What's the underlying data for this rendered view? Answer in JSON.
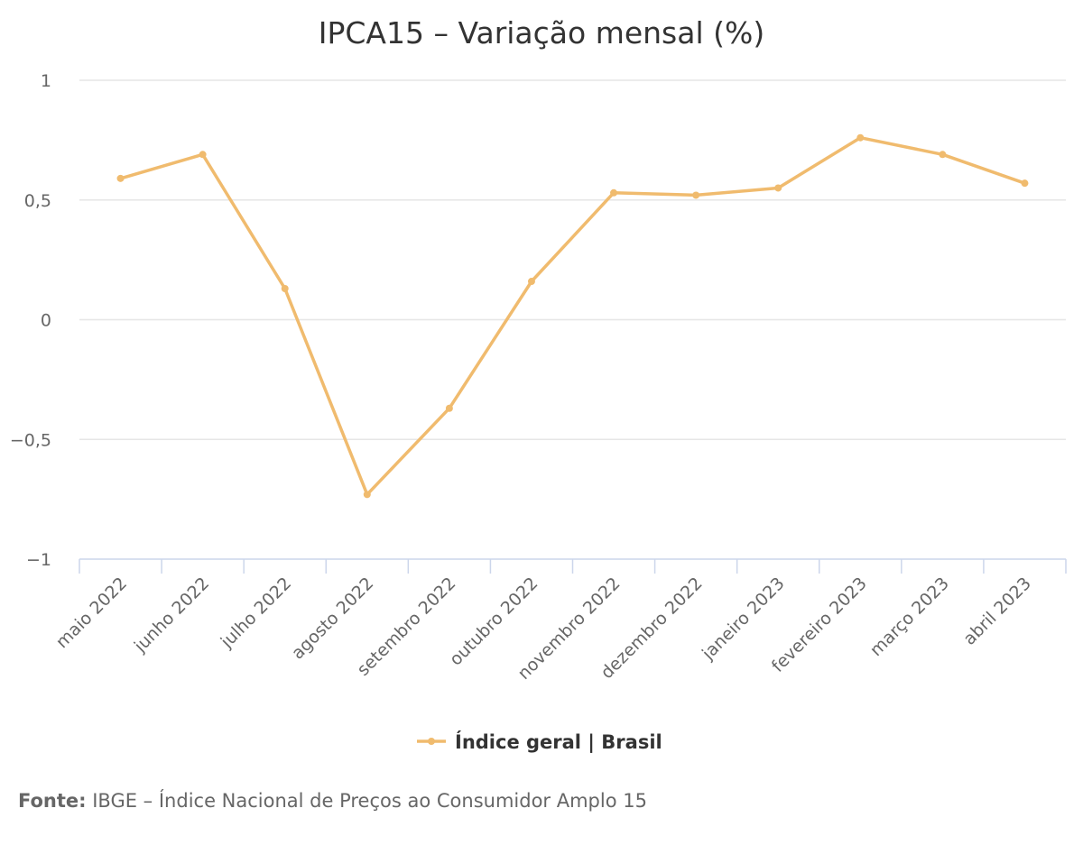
{
  "chart_data": {
    "type": "line",
    "title": "IPCA15 – Variação mensal (%)",
    "categories": [
      "maio 2022",
      "junho 2022",
      "julho 2022",
      "agosto 2022",
      "setembro 2022",
      "outubro 2022",
      "novembro 2022",
      "dezembro 2022",
      "janeiro 2023",
      "fevereiro 2023",
      "março 2023",
      "abril 2023"
    ],
    "series": [
      {
        "name": "Índice geral | Brasil",
        "color": "#f0bb6e",
        "values": [
          0.59,
          0.69,
          0.13,
          -0.73,
          -0.37,
          0.16,
          0.53,
          0.52,
          0.55,
          0.76,
          0.69,
          0.57
        ]
      }
    ],
    "ylim": [
      -1,
      1
    ],
    "yticks": [
      1,
      0.5,
      0,
      -0.5,
      -1
    ],
    "ytick_labels": [
      "1",
      "0,5",
      "0",
      "−0,5",
      "−1"
    ],
    "grid": true,
    "legend": "bottom-center"
  },
  "source": {
    "label": "Fonte:",
    "text": " IBGE – Índice Nacional de Preços ao Consumidor Amplo 15"
  }
}
